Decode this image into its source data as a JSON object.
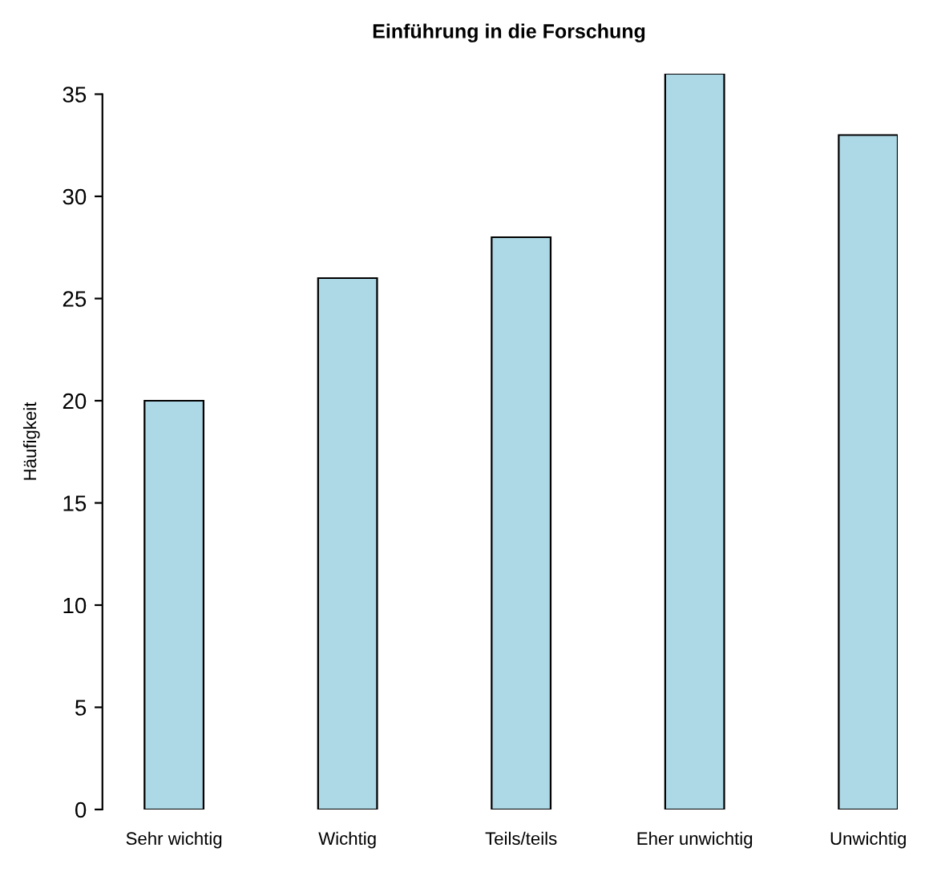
{
  "chart_data": {
    "type": "bar",
    "title": "Einführung in die Forschung",
    "ylabel": "Häufigkeit",
    "categories": [
      "Sehr wichtig",
      "Wichtig",
      "Teils/teils",
      "Eher unwichtig",
      "Unwichtig"
    ],
    "values": [
      20,
      26,
      28,
      36,
      33
    ],
    "color": "#add8e6",
    "ylim": [
      0,
      36
    ],
    "yticks": [
      0,
      5,
      10,
      15,
      20,
      25,
      30,
      35
    ],
    "grid": false,
    "legend": false
  }
}
